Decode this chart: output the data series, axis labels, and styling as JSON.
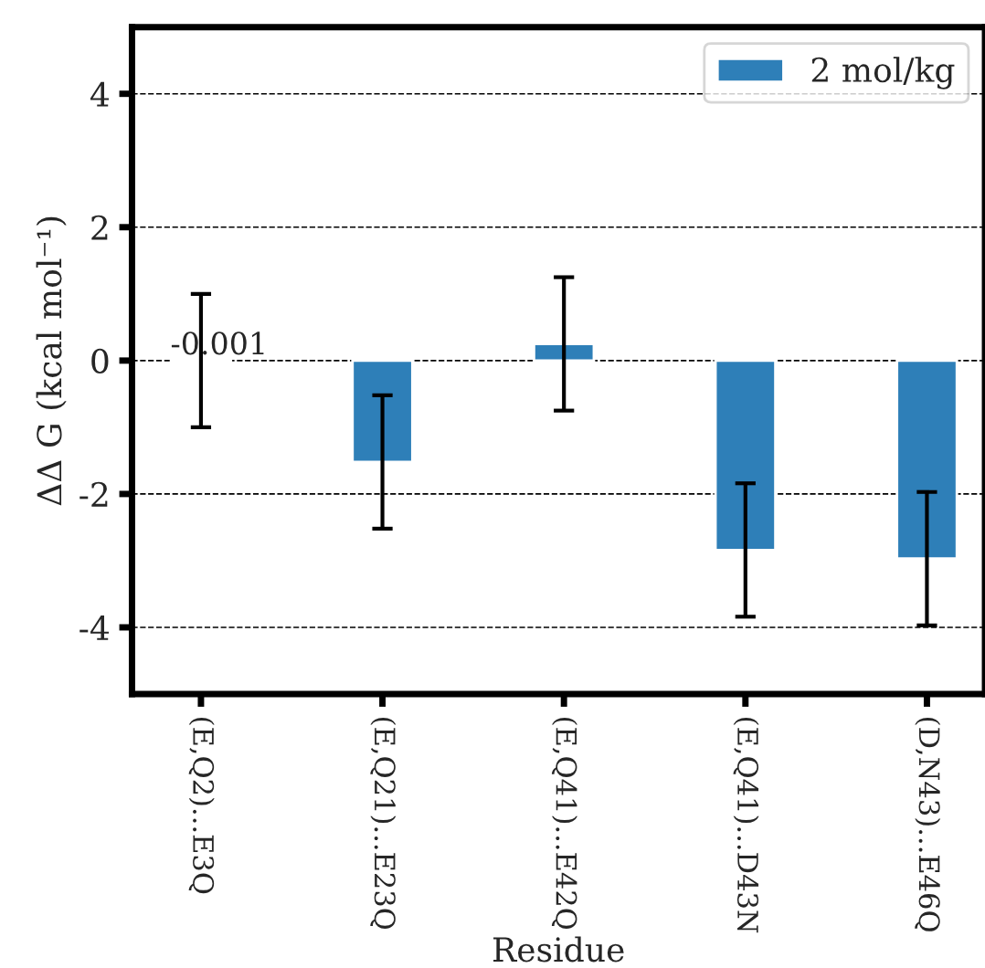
{
  "chart_data": {
    "type": "bar",
    "xlabel": "Residue",
    "ylabel": "ΔΔ G (kcal mol⁻¹)",
    "categories": [
      "(E,Q2)...E3Q",
      "(E,Q21)...E23Q",
      "(E,Q41)...E42Q",
      "(E,Q41)...D43N",
      "(D,N43)...E46Q"
    ],
    "series": [
      {
        "name": "2 mol/kg",
        "color": "#2e7fb8",
        "values": [
          -0.001,
          -1.52,
          0.25,
          -2.84,
          -2.97
        ],
        "errors": [
          1.0,
          1.0,
          1.0,
          1.0,
          1.0
        ],
        "value_labels": [
          "-0.001",
          null,
          null,
          null,
          null
        ]
      }
    ],
    "ylim": [
      -5,
      5
    ],
    "yticks": [
      -4,
      -2,
      0,
      2,
      4
    ],
    "grid": "y",
    "legend": "top right"
  }
}
